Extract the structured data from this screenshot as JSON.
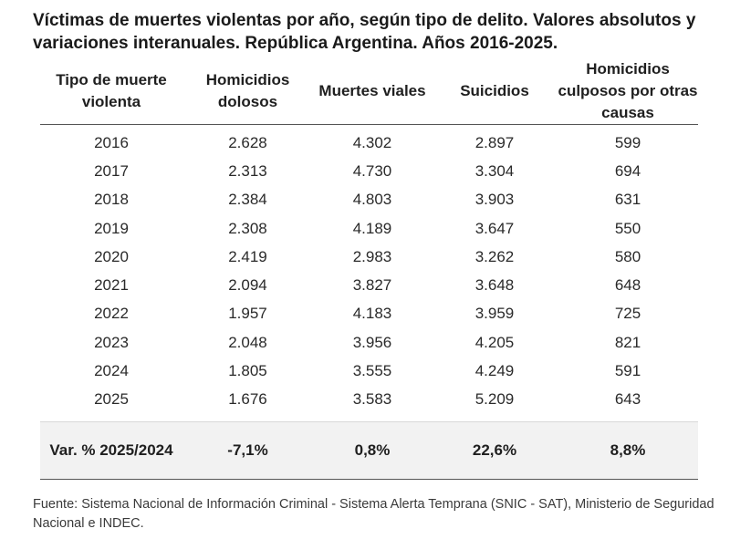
{
  "title": "Víctimas de muertes violentas por año, según tipo de delito. Valores absolutos y variaciones interanuales. República Argentina. Años 2016-2025.",
  "headers": [
    "Tipo de muerte violenta",
    "Homicidios dolosos",
    "Muertes viales",
    "Suicidios",
    "Homicidios culposos por otras causas"
  ],
  "rows": [
    [
      "2016",
      "2.628",
      "4.302",
      "2.897",
      "599"
    ],
    [
      "2017",
      "2.313",
      "4.730",
      "3.304",
      "694"
    ],
    [
      "2018",
      "2.384",
      "4.803",
      "3.903",
      "631"
    ],
    [
      "2019",
      "2.308",
      "4.189",
      "3.647",
      "550"
    ],
    [
      "2020",
      "2.419",
      "2.983",
      "3.262",
      "580"
    ],
    [
      "2021",
      "2.094",
      "3.827",
      "3.648",
      "648"
    ],
    [
      "2022",
      "1.957",
      "4.183",
      "3.959",
      "725"
    ],
    [
      "2023",
      "2.048",
      "3.956",
      "4.205",
      "821"
    ],
    [
      "2024",
      "1.805",
      "3.555",
      "4.249",
      "591"
    ],
    [
      "2025",
      "1.676",
      "3.583",
      "5.209",
      "643"
    ]
  ],
  "summary": [
    "Var. % 2025/2024",
    "-7,1%",
    "0,8%",
    "22,6%",
    "8,8%"
  ],
  "source": "Fuente: Sistema Nacional de Información Criminal - Sistema Alerta Temprana (SNIC - SAT), Ministerio de Seguridad Nacional e INDEC."
}
